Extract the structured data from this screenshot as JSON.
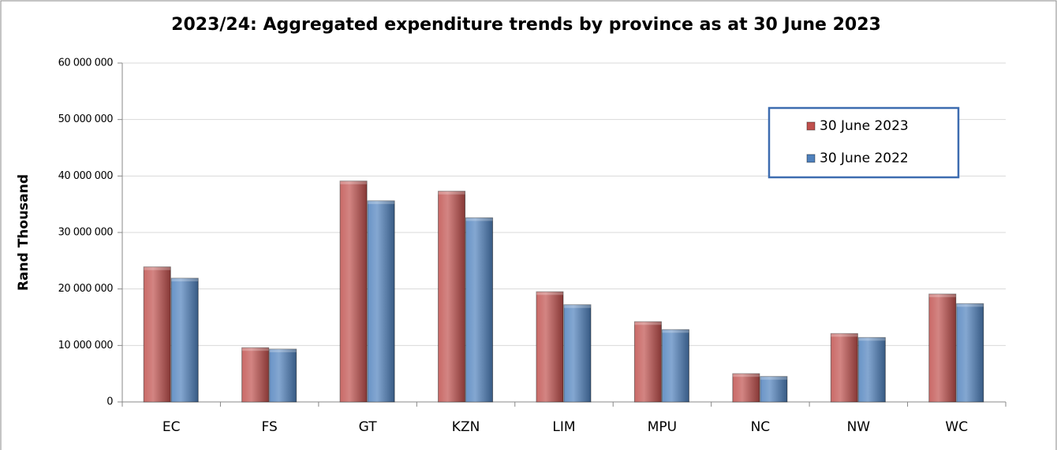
{
  "chart_data": {
    "type": "bar",
    "title": "2023/24: Aggregated expenditure trends by province as at 30 June 2023",
    "y_label": "Rand Thousand",
    "categories": [
      "EC",
      "FS",
      "GT",
      "KZN",
      "LIM",
      "MPU",
      "NC",
      "NW",
      "WC"
    ],
    "series": [
      {
        "name": "30 June 2023",
        "color": "#c0504d",
        "values": [
          23900000,
          9600000,
          39100000,
          37300000,
          19500000,
          14200000,
          5000000,
          12100000,
          19100000
        ]
      },
      {
        "name": "30 June 2022",
        "color": "#4f81bd",
        "values": [
          21900000,
          9350000,
          35600000,
          32600000,
          17200000,
          12800000,
          4500000,
          11400000,
          17400000
        ]
      }
    ],
    "ylim": [
      0,
      60000000
    ],
    "yticks": [
      0,
      {
        "value": 10000000,
        "label": "10 000 000"
      },
      {
        "value": 20000000,
        "label": "20 000 000"
      },
      {
        "value": 30000000,
        "label": "30 000 000"
      },
      {
        "value": 40000000,
        "label": "40 000 000"
      },
      {
        "value": 50000000,
        "label": "50 000 000"
      },
      {
        "value": 60000000,
        "label": "60 000 000"
      }
    ],
    "grid": true,
    "legend": "top-right"
  }
}
